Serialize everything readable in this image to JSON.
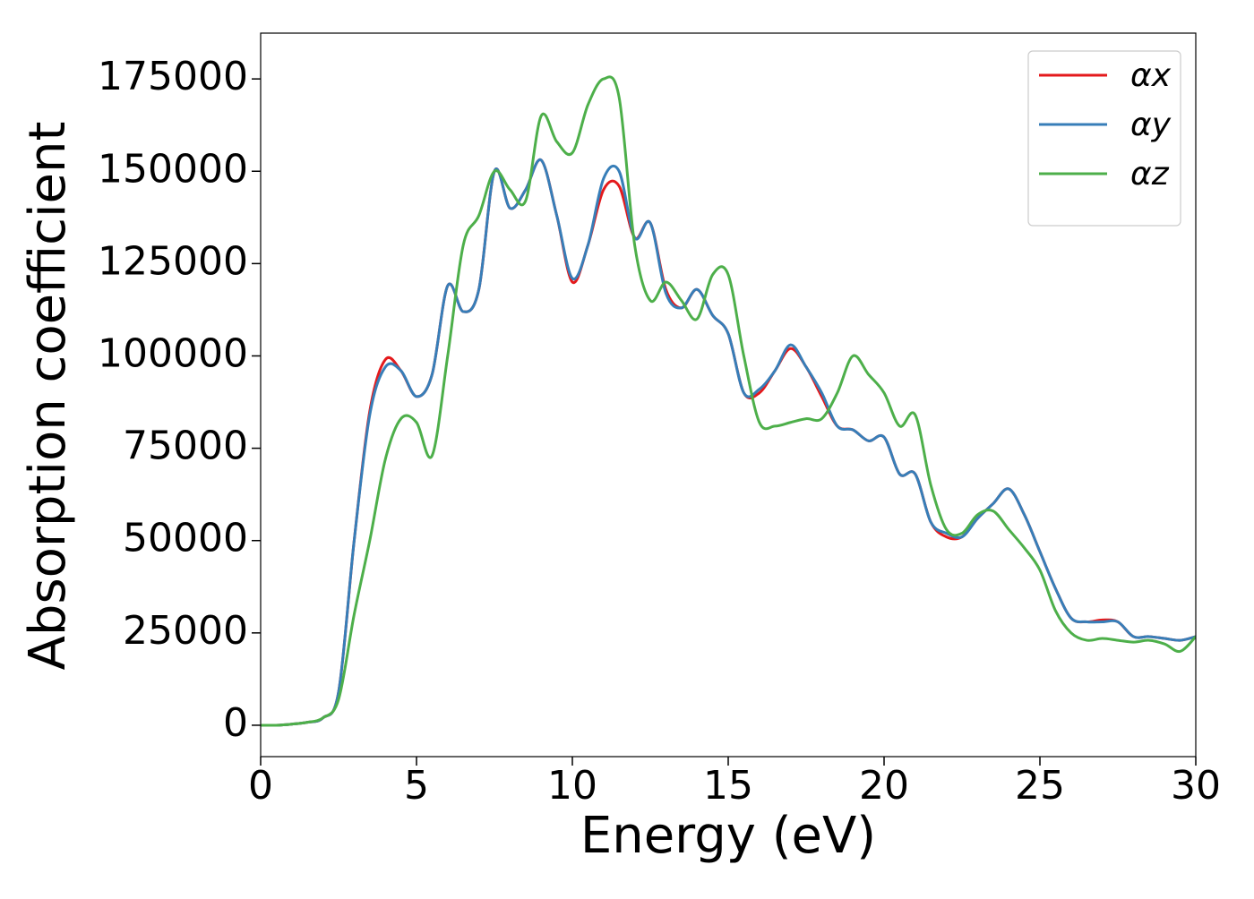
{
  "chart_data": {
    "type": "line",
    "xlabel": "Energy (eV)",
    "ylabel": "Absorption coefficient",
    "x": [
      0,
      0.5,
      1,
      1.5,
      2,
      2.5,
      3,
      3.5,
      4,
      4.5,
      5,
      5.5,
      6,
      6.5,
      7,
      7.5,
      8,
      8.5,
      9,
      9.5,
      10,
      10.5,
      11,
      11.5,
      12,
      12.5,
      13,
      13.5,
      14,
      14.5,
      15,
      15.5,
      16,
      16.5,
      17,
      17.5,
      18,
      18.5,
      19,
      19.5,
      20,
      20.5,
      21,
      21.5,
      22,
      22.5,
      23,
      23.5,
      24,
      24.5,
      25,
      25.5,
      26,
      26.5,
      27,
      27.5,
      28,
      28.5,
      29,
      29.5,
      30
    ],
    "series": [
      {
        "name": "αx",
        "color": "#e41a1c",
        "values": [
          0,
          0,
          300,
          800,
          2000,
          9000,
          50000,
          85000,
          99000,
          96000,
          89000,
          95000,
          119000,
          112000,
          118000,
          150000,
          140000,
          145000,
          153000,
          138000,
          120000,
          130000,
          145000,
          146000,
          132000,
          136000,
          118000,
          113000,
          118000,
          111000,
          106000,
          90000,
          90000,
          96000,
          102000,
          97000,
          89000,
          81000,
          80000,
          77000,
          78000,
          68000,
          68000,
          55000,
          51000,
          51000,
          56000,
          60000,
          64000,
          57000,
          47000,
          37000,
          29000,
          28000,
          28500,
          28000,
          24000,
          24000,
          23500,
          23000,
          24000
        ]
      },
      {
        "name": "αy",
        "color": "#377eb8",
        "values": [
          0,
          0,
          300,
          800,
          2000,
          9000,
          50000,
          84000,
          97000,
          96000,
          89000,
          95000,
          119000,
          112000,
          118000,
          150000,
          140000,
          145000,
          153000,
          138000,
          121000,
          130000,
          148000,
          150000,
          132000,
          136000,
          117000,
          113000,
          118000,
          111000,
          106000,
          90000,
          91000,
          96000,
          103000,
          97000,
          90000,
          81000,
          80000,
          77000,
          78000,
          68000,
          68000,
          55000,
          52000,
          51000,
          56000,
          60000,
          64000,
          57000,
          47000,
          37000,
          29000,
          28000,
          28000,
          28000,
          24000,
          24000,
          23500,
          23000,
          24000
        ]
      },
      {
        "name": "αz",
        "color": "#4daf4a",
        "values": [
          0,
          0,
          300,
          800,
          2000,
          7000,
          30000,
          50000,
          72000,
          83000,
          82000,
          73000,
          100000,
          130000,
          138000,
          150000,
          145000,
          142000,
          165000,
          158000,
          155000,
          168000,
          175000,
          170000,
          130000,
          115000,
          120000,
          115000,
          110000,
          122000,
          122000,
          100000,
          82000,
          81000,
          82000,
          83000,
          83000,
          90000,
          100000,
          95000,
          90000,
          81000,
          84000,
          65000,
          53000,
          52000,
          57000,
          58000,
          53000,
          48000,
          42000,
          31000,
          25000,
          23000,
          23500,
          23000,
          22500,
          23000,
          22000,
          20000,
          24000
        ]
      }
    ],
    "xlim": [
      0,
      30
    ],
    "xticks": [
      0,
      5,
      10,
      15,
      20,
      25,
      30
    ],
    "ylim": [
      -8500,
      187400
    ],
    "yticks": [
      0,
      25000,
      50000,
      75000,
      100000,
      125000,
      150000,
      175000
    ],
    "legend": "upper right",
    "grid": false
  }
}
